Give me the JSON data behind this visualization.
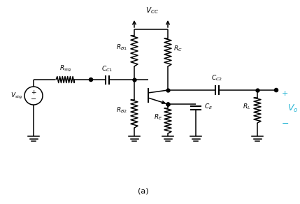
{
  "bg_color": "#ffffff",
  "line_color": "#000000",
  "cyan_color": "#29b6d4",
  "fig_width": 4.29,
  "fig_height": 2.92,
  "dpi": 100,
  "caption": "(a)"
}
